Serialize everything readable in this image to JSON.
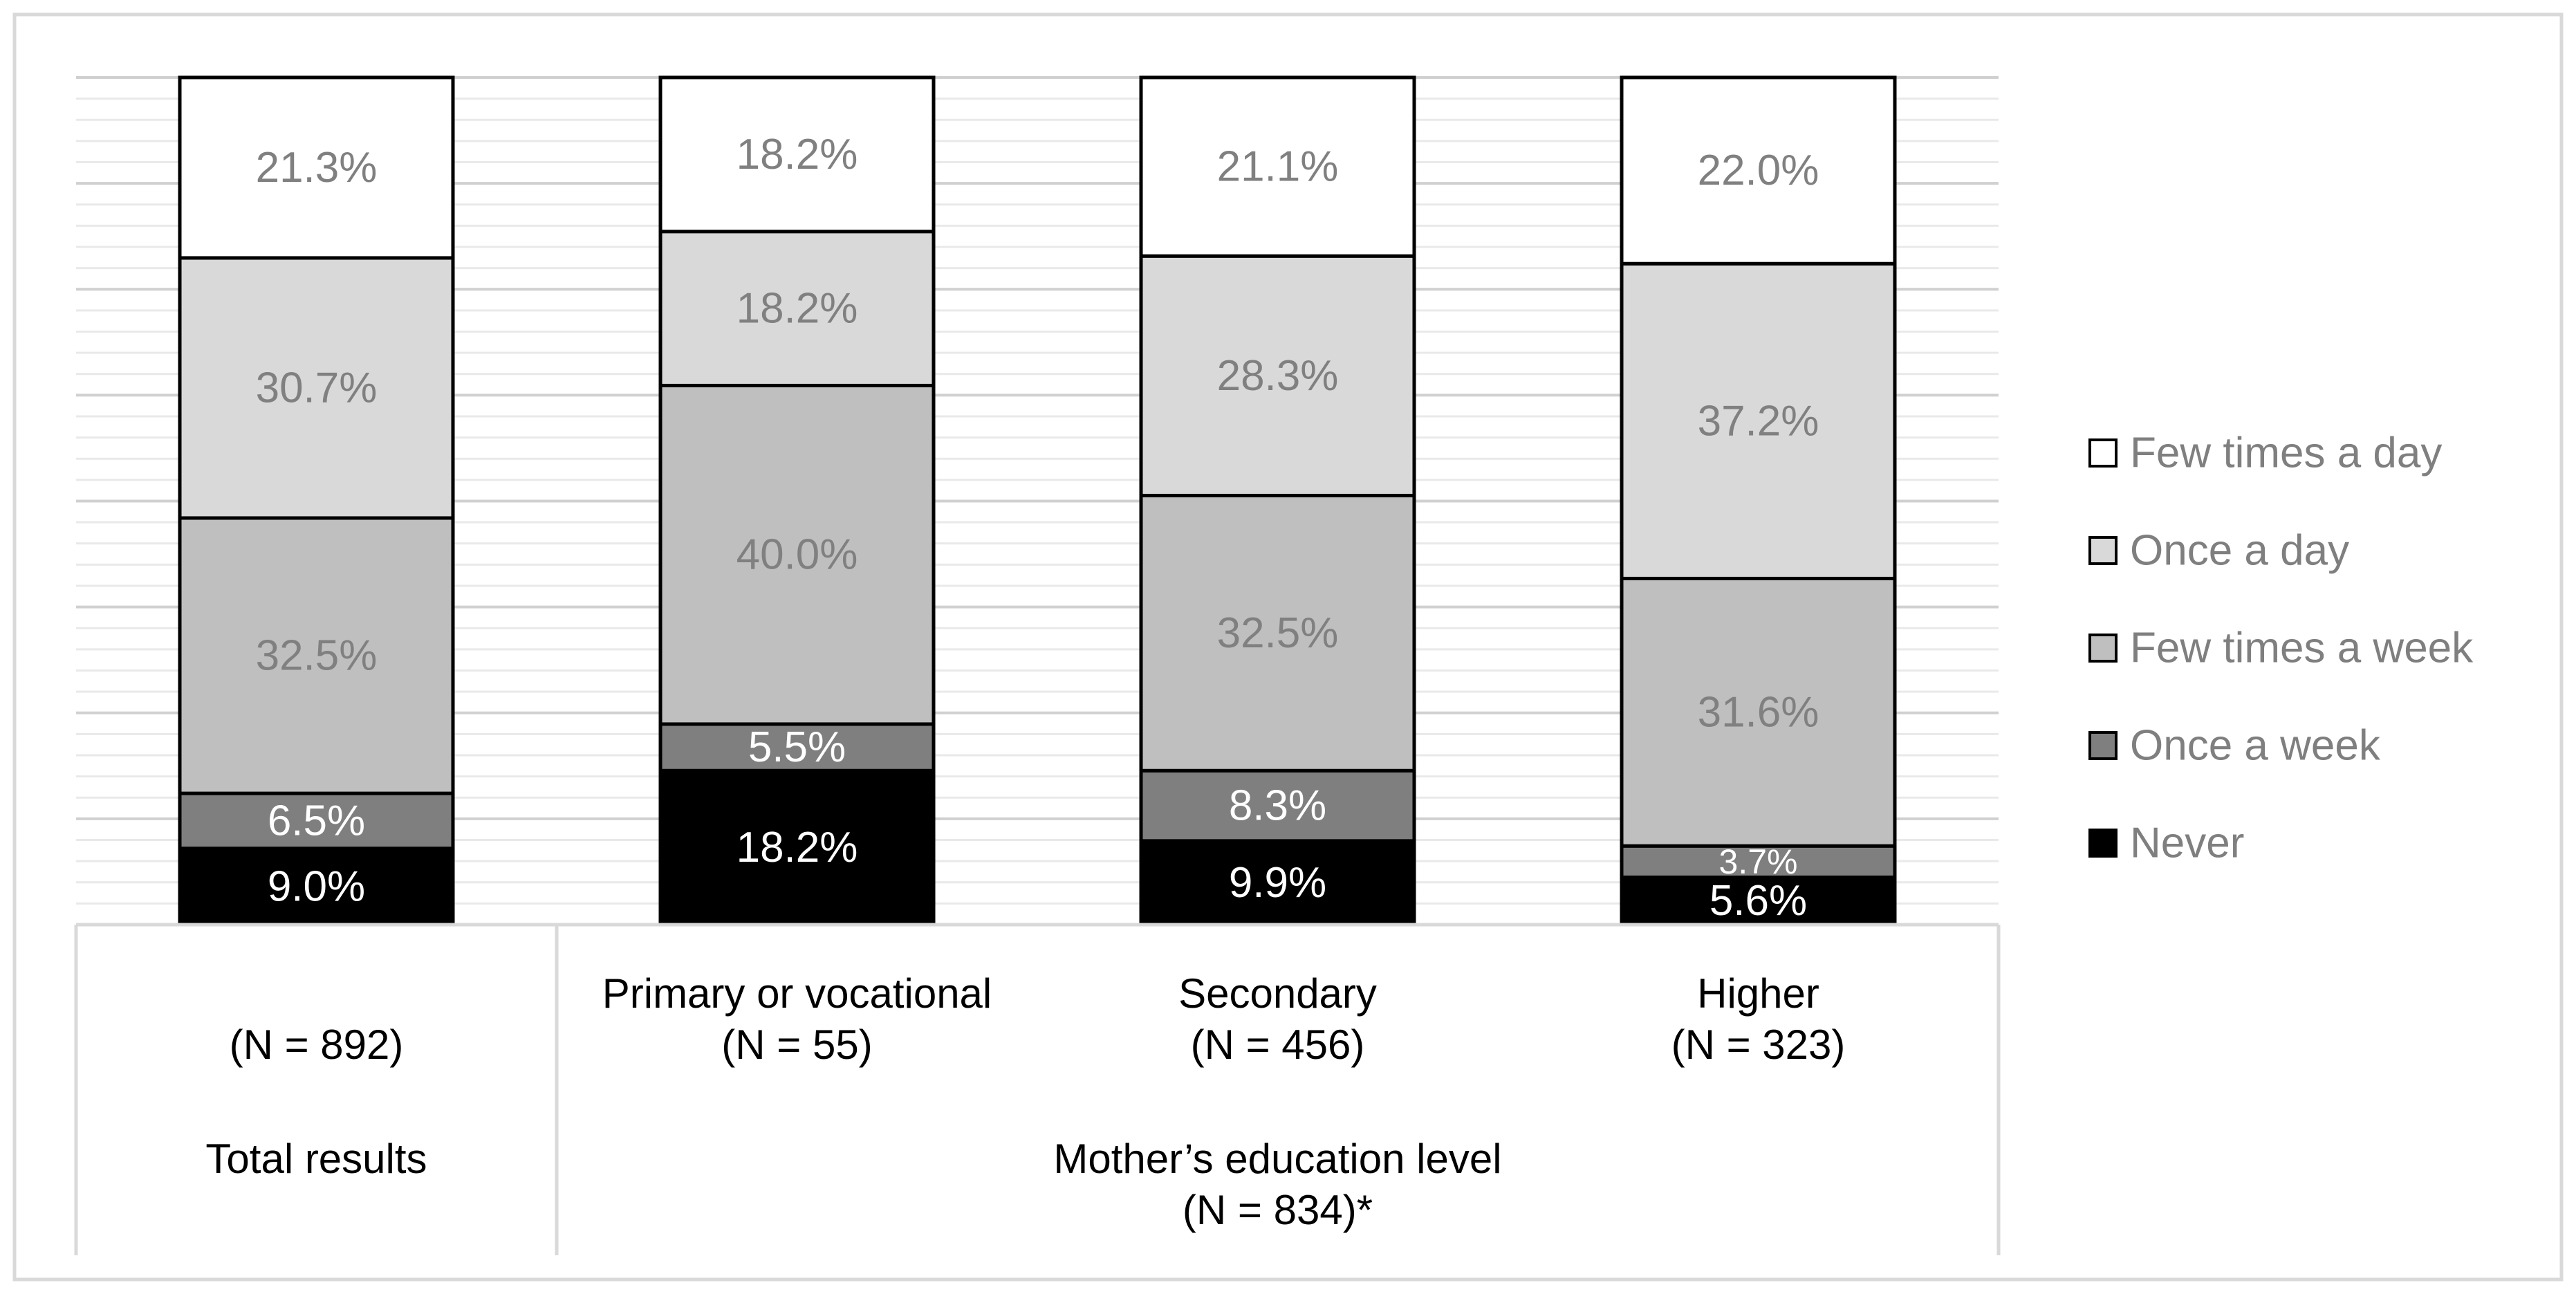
{
  "chart_data": {
    "type": "bar",
    "stacked": true,
    "normalized_percent": true,
    "categories": [
      [
        "(N = 892)"
      ],
      [
        "Primary or vocational",
        "(N = 55)"
      ],
      [
        "Secondary",
        "(N = 456)"
      ],
      [
        "Higher",
        "(N = 323)"
      ]
    ],
    "groups": [
      {
        "label": [
          "Total results"
        ],
        "span": [
          0,
          0
        ]
      },
      {
        "label": [
          "Mother’s education level",
          "(N = 834)*"
        ],
        "span": [
          1,
          3
        ]
      }
    ],
    "series": [
      {
        "name": "Never",
        "color": "#000000",
        "values": [
          9.0,
          18.2,
          9.9,
          5.6
        ],
        "labels": [
          "9.0%",
          "18.2%",
          "9.9%",
          "5.6%"
        ],
        "label_color": "#ffffff"
      },
      {
        "name": "Once a week",
        "color": "#7f7f7f",
        "values": [
          6.5,
          5.5,
          8.3,
          3.7
        ],
        "labels": [
          "6.5%",
          "5.5%",
          "8.3%",
          "3.7%"
        ],
        "label_color": "#ffffff"
      },
      {
        "name": "Few times a week",
        "color": "#bfbfbf",
        "values": [
          32.5,
          40.0,
          32.5,
          31.6
        ],
        "labels": [
          "32.5%",
          "40.0%",
          "32.5%",
          "31.6%"
        ],
        "label_color": "#808080"
      },
      {
        "name": "Once a day",
        "color": "#d9d9d9",
        "values": [
          30.7,
          18.2,
          28.3,
          37.2
        ],
        "labels": [
          "30.7%",
          "18.2%",
          "28.3%",
          "37.2%"
        ],
        "label_color": "#808080"
      },
      {
        "name": "Few times a day",
        "color": "#ffffff",
        "values": [
          21.3,
          18.2,
          21.1,
          22.0
        ],
        "labels": [
          "21.3%",
          "18.2%",
          "21.1%",
          "22.0%"
        ],
        "label_color": "#808080"
      }
    ],
    "legend_order": [
      "Few times a day",
      "Once a day",
      "Few times a week",
      "Once a week",
      "Never"
    ],
    "legend_position": "right",
    "grid": true,
    "ylim": [
      0,
      100
    ]
  }
}
